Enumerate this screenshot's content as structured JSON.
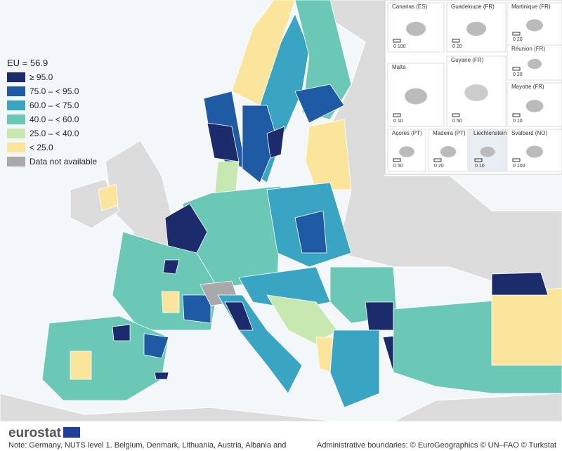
{
  "legend": {
    "title": "EU = 56.9",
    "items": [
      {
        "label": "≥ 95.0",
        "color": "#1b2b6b"
      },
      {
        "label": "75.0 – < 95.0",
        "color": "#1f5aa5"
      },
      {
        "label": "60.0 – < 75.0",
        "color": "#3aa4c3"
      },
      {
        "label": "40.0 – < 60.0",
        "color": "#6cc8b6"
      },
      {
        "label": "25.0 – < 40.0",
        "color": "#c8e8b1"
      },
      {
        "label": "< 25.0",
        "color": "#fbe59d"
      },
      {
        "label": "Data not available",
        "color": "#a9a9a9"
      }
    ]
  },
  "insets": [
    {
      "name": "Canarias (ES)",
      "scale": "0  100"
    },
    {
      "name": "Guadeloupe (FR)",
      "scale": "0  20"
    },
    {
      "name": "Martinique (FR)",
      "scale": "0  20"
    },
    {
      "name": "Réunion (FR)",
      "scale": "0  20"
    },
    {
      "name": "Malta",
      "scale": "0  10"
    },
    {
      "name": "Guyane (FR)",
      "scale": "0  50"
    },
    {
      "name": "Mayotte (FR)",
      "scale": "0  10"
    },
    {
      "name": "Açores (PT)",
      "scale": "0  50"
    },
    {
      "name": "Madeira (PT)",
      "scale": "0  20"
    },
    {
      "name": "Liechtenstein",
      "scale": "0  10"
    },
    {
      "name": "Svalbard (NO)",
      "scale": "0 100"
    }
  ],
  "footer": {
    "logo": "eurostat",
    "note": "Note: Germany, NUTS level 1. Belgium, Denmark, Lithuania, Austria, Albania and",
    "credits": "Administrative boundaries: © EuroGeographics © UN–FAO © Turkstat"
  }
}
